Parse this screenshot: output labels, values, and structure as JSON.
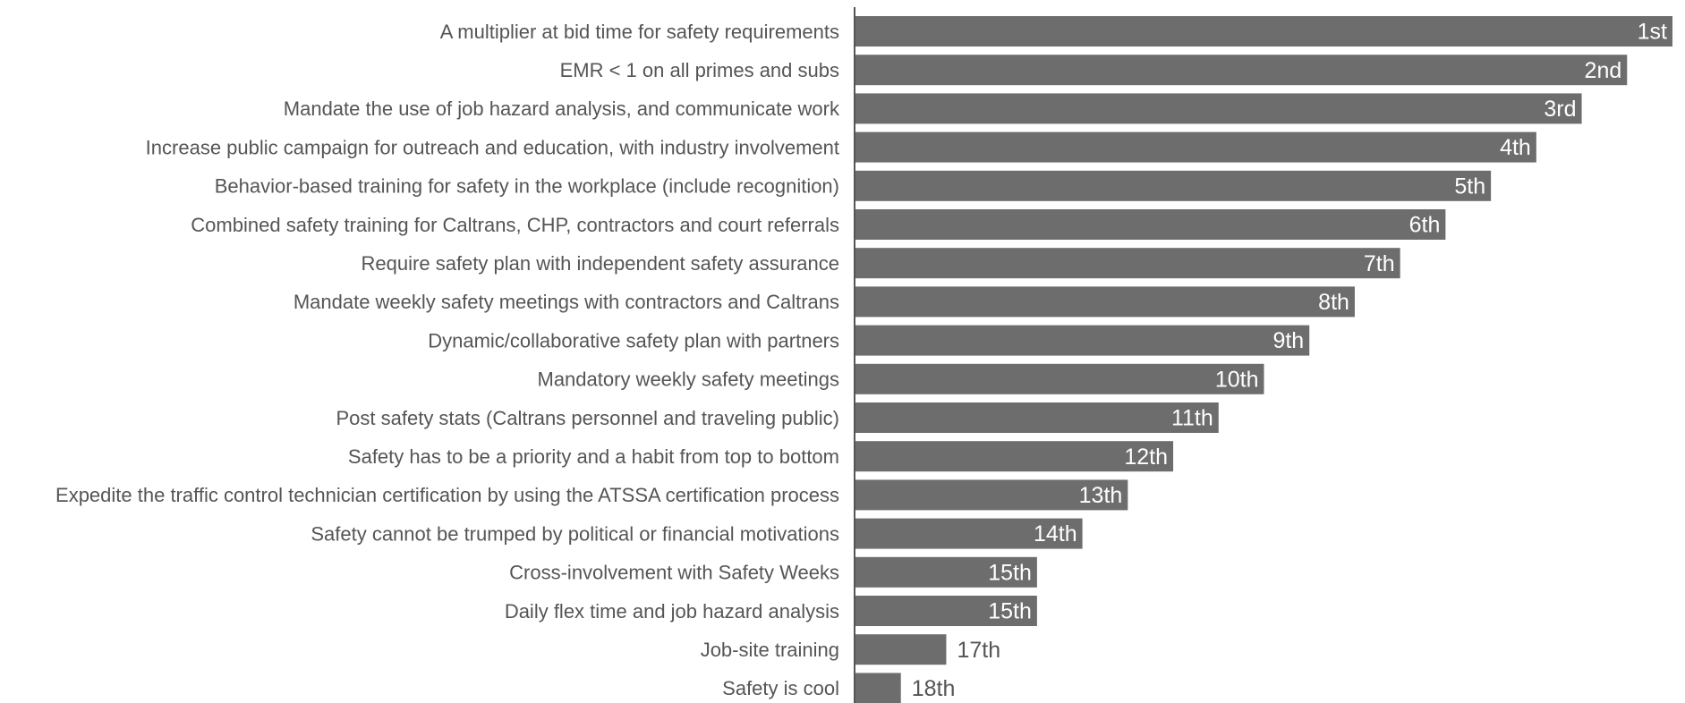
{
  "chart_data": {
    "type": "barh",
    "color": "#6d6d6d",
    "categories": [
      "A multiplier at bid time for safety requirements",
      "EMR < 1 on all primes and subs",
      "Mandate the use of job hazard analysis, and communicate work",
      "Increase public campaign for outreach and education, with industry involvement",
      "Behavior-based training for safety in the workplace (include recognition)",
      "Combined safety training for Caltrans, CHP, contractors and court referrals",
      "Require safety plan with independent safety assurance",
      "Mandate weekly safety meetings with contractors and Caltrans",
      "Dynamic/collaborative safety plan with partners",
      "Mandatory weekly safety meetings",
      "Post safety stats (Caltrans personnel and traveling public)",
      "Safety has to be a priority and a habit from top to bottom",
      "Expedite the traffic control technician certification by using the ATSSA certification process",
      "Safety cannot be trumped by political or financial motivations",
      "Cross-involvement with Safety Weeks",
      "Daily flex time and job hazard analysis",
      "Job-site training",
      "Safety is cool"
    ],
    "values": [
      1,
      2,
      3,
      4,
      5,
      6,
      7,
      8,
      9,
      10,
      11,
      12,
      13,
      14,
      15,
      15,
      17,
      18
    ],
    "value_labels": [
      "1st",
      "2nd",
      "3rd",
      "4th",
      "5th",
      "6th",
      "7th",
      "8th",
      "9th",
      "10th",
      "11th",
      "12th",
      "13th",
      "14th",
      "15th",
      "15th",
      "17th",
      "18th"
    ],
    "xlim": [
      19,
      1
    ]
  }
}
